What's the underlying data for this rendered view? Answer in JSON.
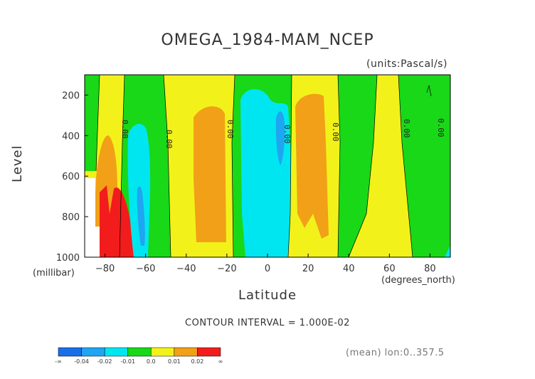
{
  "chart_data": {
    "type": "heatmap",
    "title": "OMEGA_1984-MAM_NCEP",
    "units_note": "(units:Pascal/s)",
    "xlabel": "Latitude",
    "xunits": "(degrees_north)",
    "ylabel": "Level",
    "yunits": "(millibar)",
    "xlim": [
      -90,
      90
    ],
    "ylim": [
      1000,
      100
    ],
    "xticks": [
      -80,
      -60,
      -40,
      -20,
      0,
      20,
      40,
      60,
      80
    ],
    "yticks": [
      200,
      400,
      600,
      800,
      1000
    ],
    "contour_interval_text": "CONTOUR INTERVAL = 1.000E-02",
    "mean_text": "(mean) lon:0..357.5",
    "contour_labels": [
      "0.00",
      "0.00",
      "0.00",
      "0.00",
      "0.00",
      "0.00",
      "0.00"
    ],
    "colorbar": {
      "labels": [
        "-∞",
        "-0.04",
        "-0.02",
        "-0.01",
        "0.0",
        "0.01",
        "0.02",
        "∞"
      ],
      "colors": [
        "#1a6fe8",
        "#1fa5f2",
        "#00e6f0",
        "#18d818",
        "#f2f21a",
        "#f2a018",
        "#f21c1c"
      ]
    },
    "bands": [
      {
        "x0": -90,
        "x1": -86,
        "value": 0.005
      },
      {
        "x0": -86,
        "x1": -74,
        "value": 0.02
      },
      {
        "x0": -74,
        "x1": -69,
        "value": 0.005
      },
      {
        "x0": -69,
        "x1": -63,
        "value": -0.005
      },
      {
        "x0": -63,
        "x1": -57,
        "value": -0.02
      },
      {
        "x0": -57,
        "x1": -46,
        "value": 0.005
      },
      {
        "x0": -46,
        "x1": -32,
        "value": 0.005
      },
      {
        "x0": -32,
        "x1": -17,
        "value": 0.015
      },
      {
        "x0": -17,
        "x1": -12,
        "value": 0.005
      },
      {
        "x0": -12,
        "x1": 8,
        "value": -0.008
      },
      {
        "x0": 8,
        "x1": 12,
        "value": 0.005
      },
      {
        "x0": 12,
        "x1": 30,
        "value": 0.015
      },
      {
        "x0": 30,
        "x1": 34,
        "value": 0.005
      },
      {
        "x0": 34,
        "x1": 55,
        "value": -0.005
      },
      {
        "x0": 55,
        "x1": 67,
        "value": 0.005
      },
      {
        "x0": 67,
        "x1": 90,
        "value": -0.003
      }
    ]
  }
}
